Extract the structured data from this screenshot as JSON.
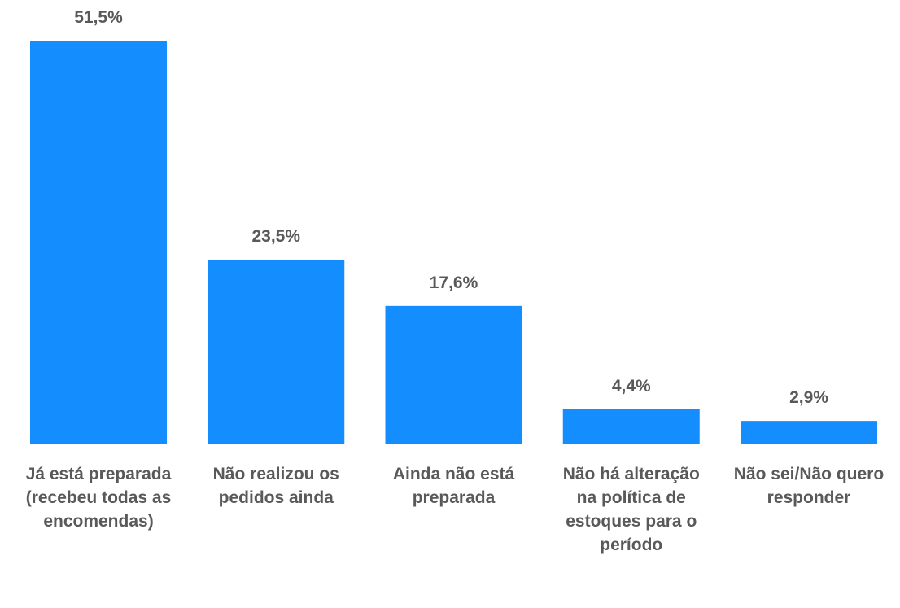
{
  "chart_data": {
    "type": "bar",
    "categories": [
      "Já está preparada (recebeu todas as encomendas)",
      "Não realizou os pedidos ainda",
      "Ainda não está preparada",
      "Não há alteração na política de estoques para o período",
      "Não sei/Não quero responder"
    ],
    "values": [
      51.5,
      23.5,
      17.6,
      4.4,
      2.9
    ],
    "value_labels": [
      "51,5%",
      "23,5%",
      "17,6%",
      "4,4%",
      "2,9%"
    ],
    "color": "#148eff"
  }
}
